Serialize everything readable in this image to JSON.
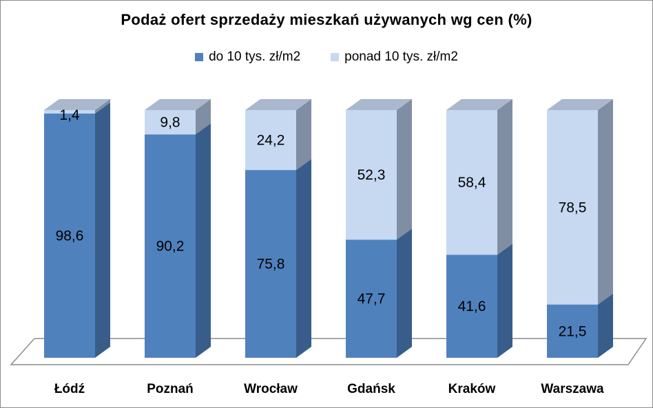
{
  "chart_data": {
    "type": "bar",
    "stacked": true,
    "three_d": true,
    "title": "Podaż ofert sprzedaży mieszkań używanych wg cen (%)",
    "categories": [
      "Łódź",
      "Poznań",
      "Wrocław",
      "Gdańsk",
      "Kraków",
      "Warszawa"
    ],
    "series": [
      {
        "name": "do 10 tys. zł/m2",
        "values": [
          "98,6",
          "90,2",
          "75,8",
          "47,7",
          "41,6",
          "21,5"
        ],
        "numeric": [
          98.6,
          90.2,
          75.8,
          47.7,
          41.6,
          21.5
        ],
        "color": "#4f81bd"
      },
      {
        "name": "ponad 10 tys. zł/m2",
        "values": [
          "1,4",
          "9,8",
          "24,2",
          "52,3",
          "58,4",
          "78,5"
        ],
        "numeric": [
          1.4,
          9.8,
          24.2,
          52.3,
          58.4,
          78.5
        ],
        "color": "#c6d9f1"
      }
    ],
    "ylim": [
      0,
      100
    ],
    "legend_position": "top",
    "grid": false
  }
}
